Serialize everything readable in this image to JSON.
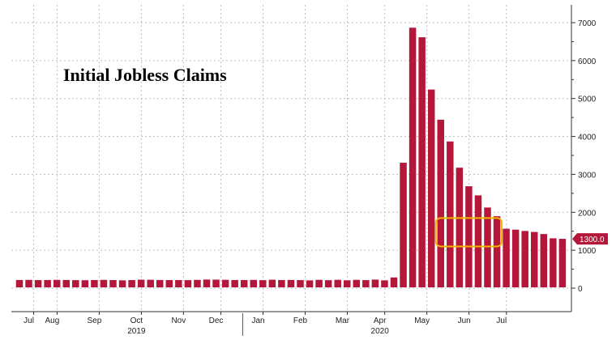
{
  "chart_data": {
    "type": "bar",
    "title": "Initial Jobless Claims",
    "xlabel": "",
    "ylabel": "",
    "ylim": [
      -600,
      7400
    ],
    "y_ticks": [
      0,
      1000,
      2000,
      3000,
      4000,
      5000,
      6000,
      7000
    ],
    "grid": true,
    "y_axis_side": "right",
    "bar_color": "#b5173a",
    "highlight_color": "#f2b400",
    "values": [
      215,
      218,
      212,
      215,
      219,
      216,
      211,
      209,
      214,
      218,
      213,
      206,
      213,
      223,
      221,
      215,
      213,
      214,
      211,
      218,
      227,
      225,
      220,
      215,
      214,
      217,
      211,
      222,
      214,
      216,
      212,
      204,
      219,
      210,
      220,
      207,
      219,
      212,
      225,
      206,
      282,
      3307,
      6867,
      6615,
      5237,
      4442,
      3867,
      3176,
      2687,
      2446,
      2126,
      1897,
      1566,
      1542,
      1508,
      1482,
      1427,
      1314,
      1300
    ],
    "month_labels": [
      "Jul",
      "Aug",
      "Sep",
      "Oct",
      "Nov",
      "Dec",
      "Jan",
      "Feb",
      "Mar",
      "Apr",
      "May",
      "Jun",
      "Jul"
    ],
    "month_label_bar_index": [
      1,
      3.5,
      8,
      12.5,
      17,
      21,
      25.5,
      30,
      34.5,
      38.5,
      43,
      47.5,
      51.5
    ],
    "year_labels": [
      {
        "label": "2019",
        "bar_index": 12.5
      },
      {
        "label": "2020",
        "bar_index": 38.5
      }
    ],
    "year_divider_bar_index": 23.5,
    "last_value_label": "1300.0",
    "highlight_range": {
      "from_bar_index": 45,
      "to_bar_index": 51,
      "from_value": 1100,
      "to_value": 1850
    }
  }
}
